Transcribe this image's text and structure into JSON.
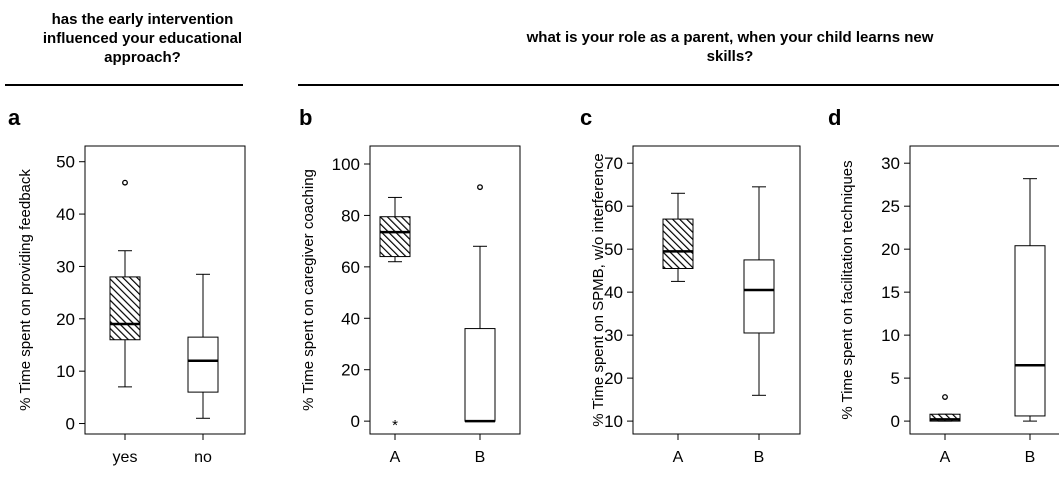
{
  "headers": [
    {
      "text": "has the early intervention influenced your educational approach?"
    },
    {
      "text": "what is your role as a parent, when your child learns new skills?"
    }
  ],
  "chart_data": [
    {
      "type": "box",
      "panel": "a",
      "ylabel": "% Time spent on providing feedback",
      "categories": [
        "yes",
        "no"
      ],
      "ylim": [
        -2,
        53
      ],
      "yticks": [
        0,
        10,
        20,
        30,
        40,
        50
      ],
      "boxes": [
        {
          "category": "yes",
          "whisker_low": 7,
          "q1": 16,
          "median": 19,
          "q3": 28,
          "whisker_high": 33,
          "outliers": [
            46
          ],
          "hatched": true
        },
        {
          "category": "no",
          "whisker_low": 1,
          "q1": 6,
          "median": 12,
          "q3": 16.5,
          "whisker_high": 28.5,
          "outliers": [],
          "hatched": false
        }
      ]
    },
    {
      "type": "box",
      "panel": "b",
      "ylabel": "% Time spent on caregiver coaching",
      "categories": [
        "A",
        "B"
      ],
      "ylim": [
        -5,
        107
      ],
      "yticks": [
        0,
        20,
        40,
        60,
        80,
        100
      ],
      "boxes": [
        {
          "category": "A",
          "whisker_low": 62,
          "q1": 64,
          "median": 73.5,
          "q3": 79.5,
          "whisker_high": 87,
          "outliers": [],
          "extremes": [
            0
          ],
          "hatched": true
        },
        {
          "category": "B",
          "whisker_low": 0,
          "q1": 0,
          "median": 0,
          "q3": 36,
          "whisker_high": 68,
          "outliers": [
            91
          ],
          "hatched": false
        }
      ]
    },
    {
      "type": "box",
      "panel": "c",
      "ylabel": "% Time spent on SPMB, w/o interference",
      "categories": [
        "A",
        "B"
      ],
      "ylim": [
        7,
        74
      ],
      "yticks": [
        10,
        20,
        30,
        40,
        50,
        60,
        70
      ],
      "boxes": [
        {
          "category": "A",
          "whisker_low": 42.5,
          "q1": 45.5,
          "median": 49.5,
          "q3": 57,
          "whisker_high": 63,
          "outliers": [],
          "hatched": true
        },
        {
          "category": "B",
          "whisker_low": 16,
          "q1": 30.5,
          "median": 40.5,
          "q3": 47.5,
          "whisker_high": 64.5,
          "outliers": [],
          "hatched": false
        }
      ]
    },
    {
      "type": "box",
      "panel": "d",
      "ylabel": "% Time spent on facilitation techniques",
      "categories": [
        "A",
        "B"
      ],
      "ylim": [
        -1.5,
        32
      ],
      "yticks": [
        0,
        5,
        10,
        15,
        20,
        25,
        30
      ],
      "boxes": [
        {
          "category": "A",
          "whisker_low": 0,
          "q1": 0,
          "median": 0.2,
          "q3": 0.8,
          "whisker_high": 0.8,
          "outliers": [
            2.8
          ],
          "hatched": true
        },
        {
          "category": "B",
          "whisker_low": 0,
          "q1": 0.6,
          "median": 6.5,
          "q3": 20.4,
          "whisker_high": 28.2,
          "outliers": [],
          "hatched": false
        }
      ]
    }
  ]
}
